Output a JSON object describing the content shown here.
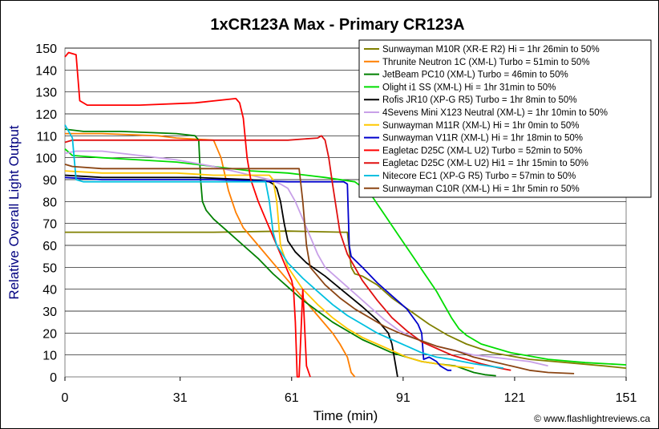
{
  "chart_data": {
    "type": "line",
    "title": "1xCR123A Max - Primary CR123A",
    "xlabel": "Time (min)",
    "ylabel": "Relative Overall Light Output",
    "xlim": [
      0,
      151
    ],
    "ylim": [
      0,
      150
    ],
    "xticks": [
      0,
      31,
      61,
      91,
      121,
      151
    ],
    "yticks": [
      0,
      10,
      20,
      30,
      40,
      50,
      60,
      70,
      80,
      90,
      100,
      110,
      120,
      130,
      140,
      150
    ],
    "grid": "horizontal",
    "legend_position": "top-right",
    "credit": "© www.flashlightreviews.ca",
    "series": [
      {
        "name": "Sunwayman M10R (XR-E R2) Hi = 1hr 26min to 50%",
        "color": "#808000",
        "points": [
          [
            0,
            66
          ],
          [
            20,
            66
          ],
          [
            40,
            66
          ],
          [
            60,
            66.5
          ],
          [
            75,
            66
          ],
          [
            76,
            66
          ],
          [
            77,
            50
          ],
          [
            78,
            47
          ],
          [
            80,
            46
          ],
          [
            84,
            42
          ],
          [
            88,
            36
          ],
          [
            93,
            30
          ],
          [
            98,
            24
          ],
          [
            103,
            19
          ],
          [
            108,
            15
          ],
          [
            115,
            11
          ],
          [
            125,
            8
          ],
          [
            135,
            6.5
          ],
          [
            145,
            5
          ],
          [
            151,
            4
          ]
        ]
      },
      {
        "name": "Thrunite Neutron 1C (XM-L) Turbo = 51min to 50%",
        "color": "#ff7f00",
        "points": [
          [
            0,
            111
          ],
          [
            10,
            111
          ],
          [
            25,
            110
          ],
          [
            30,
            109
          ],
          [
            40,
            108
          ],
          [
            42,
            100
          ],
          [
            44,
            85
          ],
          [
            46,
            75
          ],
          [
            48,
            68
          ],
          [
            52,
            60
          ],
          [
            56,
            52
          ],
          [
            60,
            44
          ],
          [
            64,
            36
          ],
          [
            68,
            28
          ],
          [
            72,
            20
          ],
          [
            74,
            15
          ],
          [
            76,
            9
          ],
          [
            77,
            2
          ],
          [
            78,
            0
          ]
        ]
      },
      {
        "name": "JetBeam PC10 (XM-L) Turbo = 46min to 50%",
        "color": "#008000",
        "points": [
          [
            0,
            113
          ],
          [
            5,
            112
          ],
          [
            15,
            112
          ],
          [
            30,
            111
          ],
          [
            35,
            110
          ],
          [
            36,
            108
          ],
          [
            36.5,
            90
          ],
          [
            37,
            80
          ],
          [
            38,
            76
          ],
          [
            40,
            72
          ],
          [
            44,
            66
          ],
          [
            48,
            60
          ],
          [
            52,
            54
          ],
          [
            56,
            47
          ],
          [
            60,
            41
          ],
          [
            64,
            35
          ],
          [
            68,
            30
          ],
          [
            72,
            25
          ],
          [
            76,
            21
          ],
          [
            80,
            17
          ],
          [
            84,
            14
          ],
          [
            88,
            11
          ],
          [
            92,
            9
          ],
          [
            96,
            7
          ],
          [
            100,
            6
          ],
          [
            105,
            5
          ],
          [
            110,
            2
          ],
          [
            113,
            1
          ],
          [
            116,
            0.5
          ]
        ]
      },
      {
        "name": "Olight i1 SS (XM-L) Hi = 1hr 31min to 50%",
        "color": "#00dd00",
        "points": [
          [
            0,
            104
          ],
          [
            2,
            101
          ],
          [
            10,
            100
          ],
          [
            20,
            99
          ],
          [
            30,
            98
          ],
          [
            40,
            96
          ],
          [
            50,
            94
          ],
          [
            60,
            93
          ],
          [
            70,
            91
          ],
          [
            78,
            89
          ],
          [
            82,
            84
          ],
          [
            84,
            79
          ],
          [
            86,
            74
          ],
          [
            88,
            69
          ],
          [
            90,
            64
          ],
          [
            92,
            59
          ],
          [
            94,
            54
          ],
          [
            96,
            49
          ],
          [
            98,
            44
          ],
          [
            100,
            39
          ],
          [
            102,
            33
          ],
          [
            104,
            27
          ],
          [
            106,
            22
          ],
          [
            108,
            19
          ],
          [
            112,
            15
          ],
          [
            120,
            11
          ],
          [
            130,
            8
          ],
          [
            140,
            6.5
          ],
          [
            151,
            5.5
          ]
        ]
      },
      {
        "name": "Rofis JR10 (XP-G R5) Turbo = 1hr 8min to 50%",
        "color": "#000000",
        "points": [
          [
            0,
            92
          ],
          [
            10,
            91
          ],
          [
            20,
            91
          ],
          [
            35,
            91
          ],
          [
            50,
            90
          ],
          [
            55,
            89
          ],
          [
            56,
            88
          ],
          [
            57,
            86
          ],
          [
            58,
            80
          ],
          [
            59,
            70
          ],
          [
            60,
            62
          ],
          [
            62,
            57
          ],
          [
            65,
            52
          ],
          [
            70,
            46
          ],
          [
            75,
            39
          ],
          [
            80,
            32
          ],
          [
            84,
            26
          ],
          [
            87,
            20
          ],
          [
            88,
            15
          ],
          [
            89,
            5
          ],
          [
            89.5,
            0
          ]
        ]
      },
      {
        "name": "4Sevens Mini X123 Neutral (XM-L) = 1hr 10min to 50%",
        "color": "#c8a0e8",
        "points": [
          [
            0,
            102
          ],
          [
            3,
            103
          ],
          [
            10,
            103
          ],
          [
            20,
            101
          ],
          [
            30,
            99
          ],
          [
            40,
            96
          ],
          [
            50,
            92
          ],
          [
            55,
            90
          ],
          [
            58,
            88
          ],
          [
            60,
            86
          ],
          [
            62,
            80
          ],
          [
            64,
            72
          ],
          [
            66,
            64
          ],
          [
            68,
            56
          ],
          [
            70,
            50
          ],
          [
            74,
            44
          ],
          [
            78,
            38
          ],
          [
            82,
            32
          ],
          [
            86,
            26
          ],
          [
            90,
            21
          ],
          [
            95,
            17
          ],
          [
            100,
            14
          ],
          [
            105,
            12
          ],
          [
            110,
            10
          ],
          [
            115,
            9
          ],
          [
            120,
            8
          ],
          [
            125,
            7
          ],
          [
            130,
            5
          ]
        ]
      },
      {
        "name": "Sunwayman M11R (XM-L) Hi = 1hr 0min to 50%",
        "color": "#ffc800",
        "points": [
          [
            0,
            94
          ],
          [
            10,
            93
          ],
          [
            20,
            93
          ],
          [
            30,
            93
          ],
          [
            40,
            92
          ],
          [
            50,
            92
          ],
          [
            55,
            92
          ],
          [
            56,
            90
          ],
          [
            57,
            80
          ],
          [
            58,
            60
          ],
          [
            60,
            50
          ],
          [
            64,
            40
          ],
          [
            68,
            33
          ],
          [
            72,
            27
          ],
          [
            76,
            22
          ],
          [
            80,
            18
          ],
          [
            84,
            15
          ],
          [
            88,
            12
          ],
          [
            92,
            9
          ],
          [
            96,
            7
          ],
          [
            100,
            6
          ],
          [
            104,
            5
          ],
          [
            110,
            4
          ]
        ]
      },
      {
        "name": "Sunwayman V11R (XM-L) Hi = 1hr 18min to 50%",
        "color": "#0000cc",
        "points": [
          [
            0,
            91
          ],
          [
            10,
            90
          ],
          [
            20,
            90
          ],
          [
            40,
            90
          ],
          [
            60,
            89
          ],
          [
            70,
            89
          ],
          [
            75,
            89
          ],
          [
            76,
            88
          ],
          [
            76.5,
            60
          ],
          [
            77,
            55
          ],
          [
            80,
            50
          ],
          [
            84,
            43
          ],
          [
            88,
            37
          ],
          [
            92,
            31
          ],
          [
            95,
            24
          ],
          [
            96,
            20
          ],
          [
            96.5,
            8
          ],
          [
            98,
            9
          ],
          [
            100,
            7
          ],
          [
            101,
            5
          ],
          [
            102,
            4
          ],
          [
            103,
            3
          ],
          [
            104,
            3
          ]
        ]
      },
      {
        "name": "Eagletac D25C (XM-L U2) Turbo  = 52min to 50%",
        "color": "#ff0000",
        "points": [
          [
            0,
            146
          ],
          [
            1,
            148
          ],
          [
            3,
            147
          ],
          [
            4,
            126
          ],
          [
            6,
            124
          ],
          [
            20,
            124
          ],
          [
            35,
            125
          ],
          [
            46,
            127
          ],
          [
            47,
            125
          ],
          [
            48,
            118
          ],
          [
            49,
            100
          ],
          [
            50,
            90
          ],
          [
            52,
            80
          ],
          [
            54,
            72
          ],
          [
            56,
            64
          ],
          [
            58,
            56
          ],
          [
            60,
            48
          ],
          [
            61,
            44
          ],
          [
            61.5,
            40
          ],
          [
            62,
            25
          ],
          [
            62.5,
            0
          ],
          [
            63,
            0
          ],
          [
            64,
            40
          ],
          [
            65,
            5
          ],
          [
            66,
            0
          ]
        ]
      },
      {
        "name": "Eagletac D25C (XM-L U2) Hi1 = 1hr 15min to 50%",
        "color": "#e01010",
        "points": [
          [
            0,
            107
          ],
          [
            2,
            108
          ],
          [
            20,
            108
          ],
          [
            40,
            108
          ],
          [
            60,
            108
          ],
          [
            68,
            109
          ],
          [
            69,
            110
          ],
          [
            70,
            108
          ],
          [
            71,
            100
          ],
          [
            72,
            88
          ],
          [
            74,
            66
          ],
          [
            76,
            56
          ],
          [
            80,
            44
          ],
          [
            84,
            35
          ],
          [
            88,
            27
          ],
          [
            92,
            21
          ],
          [
            96,
            16
          ],
          [
            100,
            13
          ],
          [
            104,
            10
          ],
          [
            108,
            8
          ],
          [
            112,
            6
          ],
          [
            117,
            4
          ],
          [
            120,
            3
          ]
        ]
      },
      {
        "name": "Nitecore EC1 (XP-G R5) Turbo = 57min to 50%",
        "color": "#00c0e0",
        "points": [
          [
            0,
            115
          ],
          [
            2,
            109
          ],
          [
            3,
            90
          ],
          [
            5,
            89
          ],
          [
            20,
            89
          ],
          [
            40,
            89
          ],
          [
            52,
            89
          ],
          [
            54,
            89
          ],
          [
            55,
            80
          ],
          [
            56,
            66
          ],
          [
            57,
            60
          ],
          [
            60,
            52
          ],
          [
            64,
            45
          ],
          [
            68,
            39
          ],
          [
            72,
            33
          ],
          [
            76,
            28
          ],
          [
            80,
            24
          ],
          [
            84,
            20
          ],
          [
            88,
            17
          ],
          [
            92,
            14
          ],
          [
            96,
            11
          ],
          [
            100,
            9
          ],
          [
            104,
            8
          ],
          [
            110,
            6
          ],
          [
            118,
            4
          ]
        ]
      },
      {
        "name": "Sunwayman C10R (XM-L) Hi = 1hr 5min ro 50%",
        "color": "#8b4513",
        "points": [
          [
            0,
            97
          ],
          [
            2,
            96
          ],
          [
            10,
            95
          ],
          [
            20,
            95
          ],
          [
            30,
            95
          ],
          [
            40,
            95
          ],
          [
            50,
            95
          ],
          [
            60,
            95
          ],
          [
            63,
            95
          ],
          [
            64,
            80
          ],
          [
            65,
            60
          ],
          [
            66,
            50
          ],
          [
            70,
            42
          ],
          [
            74,
            36
          ],
          [
            78,
            31
          ],
          [
            82,
            27
          ],
          [
            86,
            23
          ],
          [
            90,
            20
          ],
          [
            95,
            17
          ],
          [
            100,
            14
          ],
          [
            105,
            12
          ],
          [
            110,
            9
          ],
          [
            115,
            7
          ],
          [
            120,
            5
          ],
          [
            125,
            3
          ],
          [
            130,
            2
          ],
          [
            137,
            1.5
          ]
        ]
      }
    ]
  }
}
